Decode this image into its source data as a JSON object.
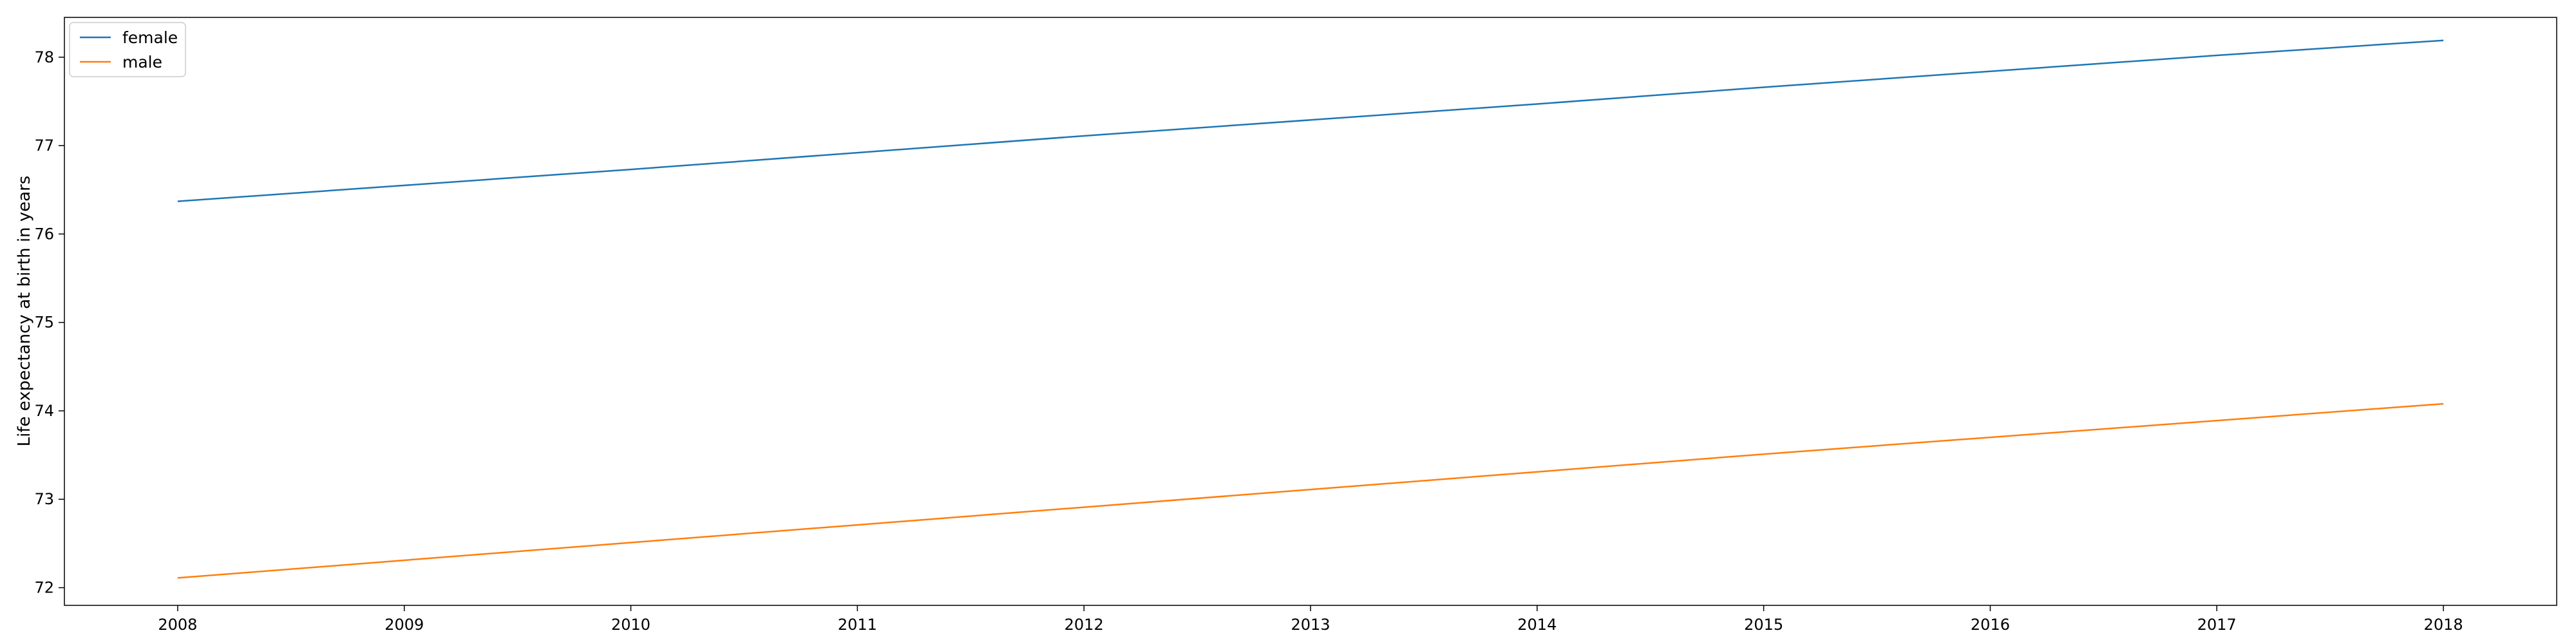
{
  "chart_data": {
    "type": "line",
    "title": "",
    "xlabel": "",
    "ylabel": "Life expectancy at birth in years",
    "x": [
      2008,
      2009,
      2010,
      2011,
      2012,
      2013,
      2014,
      2015,
      2016,
      2017,
      2018
    ],
    "x_ticks": [
      "2008",
      "2009",
      "2010",
      "2011",
      "2012",
      "2013",
      "2014",
      "2015",
      "2016",
      "2017",
      "2018"
    ],
    "y_ticks": [
      "72",
      "73",
      "74",
      "75",
      "76",
      "77",
      "78"
    ],
    "xlim": [
      2007.5,
      2018.5
    ],
    "ylim": [
      71.8,
      78.45
    ],
    "grid": false,
    "legend_position": "top-left",
    "series": [
      {
        "name": "female",
        "color": "#1f77b4",
        "values": [
          76.37,
          76.55,
          76.73,
          76.92,
          77.11,
          77.29,
          77.47,
          77.66,
          77.84,
          78.02,
          78.19
        ]
      },
      {
        "name": "male",
        "color": "#ff7f0e",
        "values": [
          72.11,
          72.31,
          72.51,
          72.71,
          72.91,
          73.11,
          73.31,
          73.51,
          73.7,
          73.89,
          74.08
        ]
      }
    ]
  }
}
